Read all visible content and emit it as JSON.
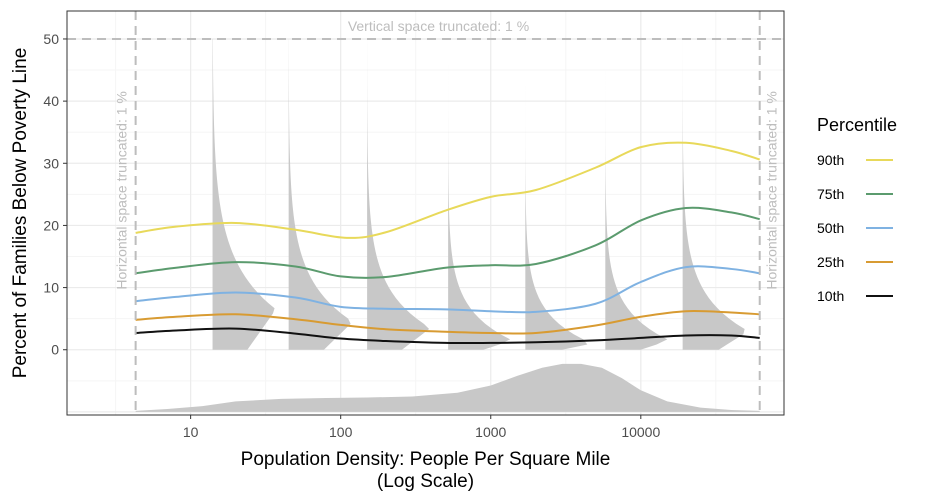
{
  "chart_data": {
    "type": "line",
    "xlabel": "Population Density: People Per Square Mile",
    "xlabel_line2": "(Log Scale)",
    "ylabel": "Percent of Families Below Poverty Line",
    "x_scale": "log10",
    "xlim": [
      1.5,
      90000
    ],
    "ylim": [
      -10.5,
      54.5
    ],
    "x_ticks": [
      10,
      100,
      1000,
      10000
    ],
    "x_tick_labels": [
      "10",
      "100",
      "1000",
      "10000"
    ],
    "y_ticks": [
      0,
      10,
      20,
      30,
      40,
      50
    ],
    "y_tick_labels": [
      "0",
      "10",
      "20",
      "30",
      "40",
      "50"
    ],
    "grid": true,
    "legend_title": "Percentile",
    "legend_position": "right",
    "annotations": {
      "top": "Vertical space truncated: 1 %",
      "left": "Horizontal space truncated: 1 %",
      "right": "Horizontal space truncated: 1 %"
    },
    "truncation": {
      "y_top": 50,
      "x_left": 4.3,
      "x_right": 62000
    },
    "series": [
      {
        "name": "90th",
        "color": "#e8d95a",
        "x": [
          4.3,
          8,
          20,
          50,
          110,
          200,
          500,
          1000,
          2000,
          5000,
          10000,
          20000,
          40000,
          62000
        ],
        "y": [
          18.8,
          19.8,
          20.4,
          19.3,
          18.0,
          18.9,
          22.4,
          24.6,
          25.7,
          29.3,
          32.6,
          33.3,
          32.0,
          30.6
        ]
      },
      {
        "name": "75th",
        "color": "#5b9b6e",
        "x": [
          4.3,
          8,
          20,
          50,
          100,
          200,
          500,
          1000,
          2000,
          5000,
          10000,
          20000,
          40000,
          62000
        ],
        "y": [
          12.3,
          13.2,
          14.1,
          13.4,
          11.8,
          11.7,
          13.2,
          13.6,
          13.8,
          16.8,
          20.8,
          22.8,
          22.1,
          21.0
        ]
      },
      {
        "name": "50th",
        "color": "#7fb2e2",
        "x": [
          4.3,
          8,
          20,
          50,
          100,
          200,
          500,
          1000,
          2000,
          5000,
          10000,
          20000,
          40000,
          62000
        ],
        "y": [
          7.8,
          8.5,
          9.2,
          8.4,
          6.9,
          6.6,
          6.5,
          6.2,
          6.1,
          7.4,
          10.9,
          13.3,
          13.0,
          12.3
        ]
      },
      {
        "name": "25th",
        "color": "#d89b32",
        "x": [
          4.3,
          8,
          20,
          50,
          100,
          200,
          500,
          1000,
          2000,
          5000,
          10000,
          20000,
          40000,
          62000
        ],
        "y": [
          4.8,
          5.3,
          5.7,
          4.9,
          4.0,
          3.3,
          2.9,
          2.7,
          2.7,
          3.9,
          5.3,
          6.2,
          6.0,
          5.7
        ]
      },
      {
        "name": "10th",
        "color": "#111111",
        "x": [
          4.3,
          8,
          20,
          50,
          100,
          200,
          500,
          1000,
          2000,
          5000,
          10000,
          20000,
          40000,
          62000
        ],
        "y": [
          2.7,
          3.1,
          3.4,
          2.6,
          1.8,
          1.4,
          1.1,
          1.1,
          1.2,
          1.5,
          1.9,
          2.3,
          2.3,
          1.9
        ]
      }
    ],
    "conditional_densities": [
      {
        "x": 14,
        "peak": 6.5
      },
      {
        "x": 45,
        "peak": 4.5
      },
      {
        "x": 150,
        "peak": 3.5
      },
      {
        "x": 520,
        "peak": 1.5
      },
      {
        "x": 1700,
        "peak": 1.0
      },
      {
        "x": 5800,
        "peak": 1.5
      },
      {
        "x": 19000,
        "peak": 3.0
      }
    ],
    "marginal_density": {
      "x": [
        4.3,
        7,
        12,
        20,
        40,
        80,
        150,
        300,
        600,
        1000,
        1500,
        2200,
        3000,
        4000,
        5500,
        7500,
        10000,
        15000,
        25000,
        40000,
        62000
      ],
      "density": [
        0.02,
        0.06,
        0.12,
        0.22,
        0.27,
        0.29,
        0.3,
        0.32,
        0.4,
        0.55,
        0.75,
        0.92,
        1.0,
        1.0,
        0.92,
        0.7,
        0.45,
        0.22,
        0.09,
        0.04,
        0.02
      ]
    },
    "colors": {
      "panel_border": "#333333",
      "grid_major": "#ebebeb",
      "grid_minor": "#f5f5f5",
      "density_fill": "#c8c8c8",
      "truncation_line": "#bdbdbd"
    }
  }
}
